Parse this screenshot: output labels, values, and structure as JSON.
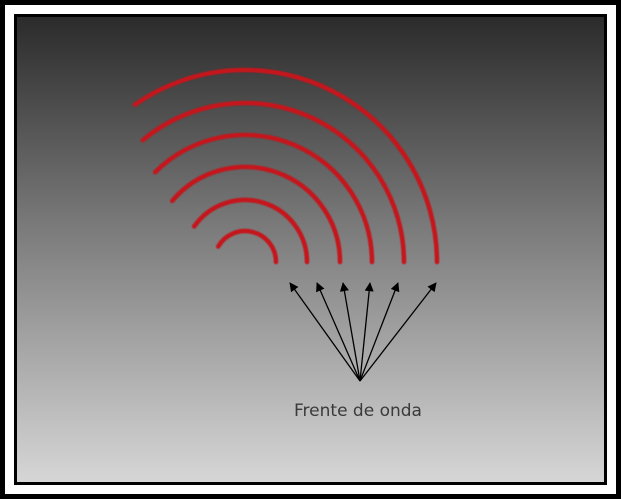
{
  "label": "Frente de onda"
}
